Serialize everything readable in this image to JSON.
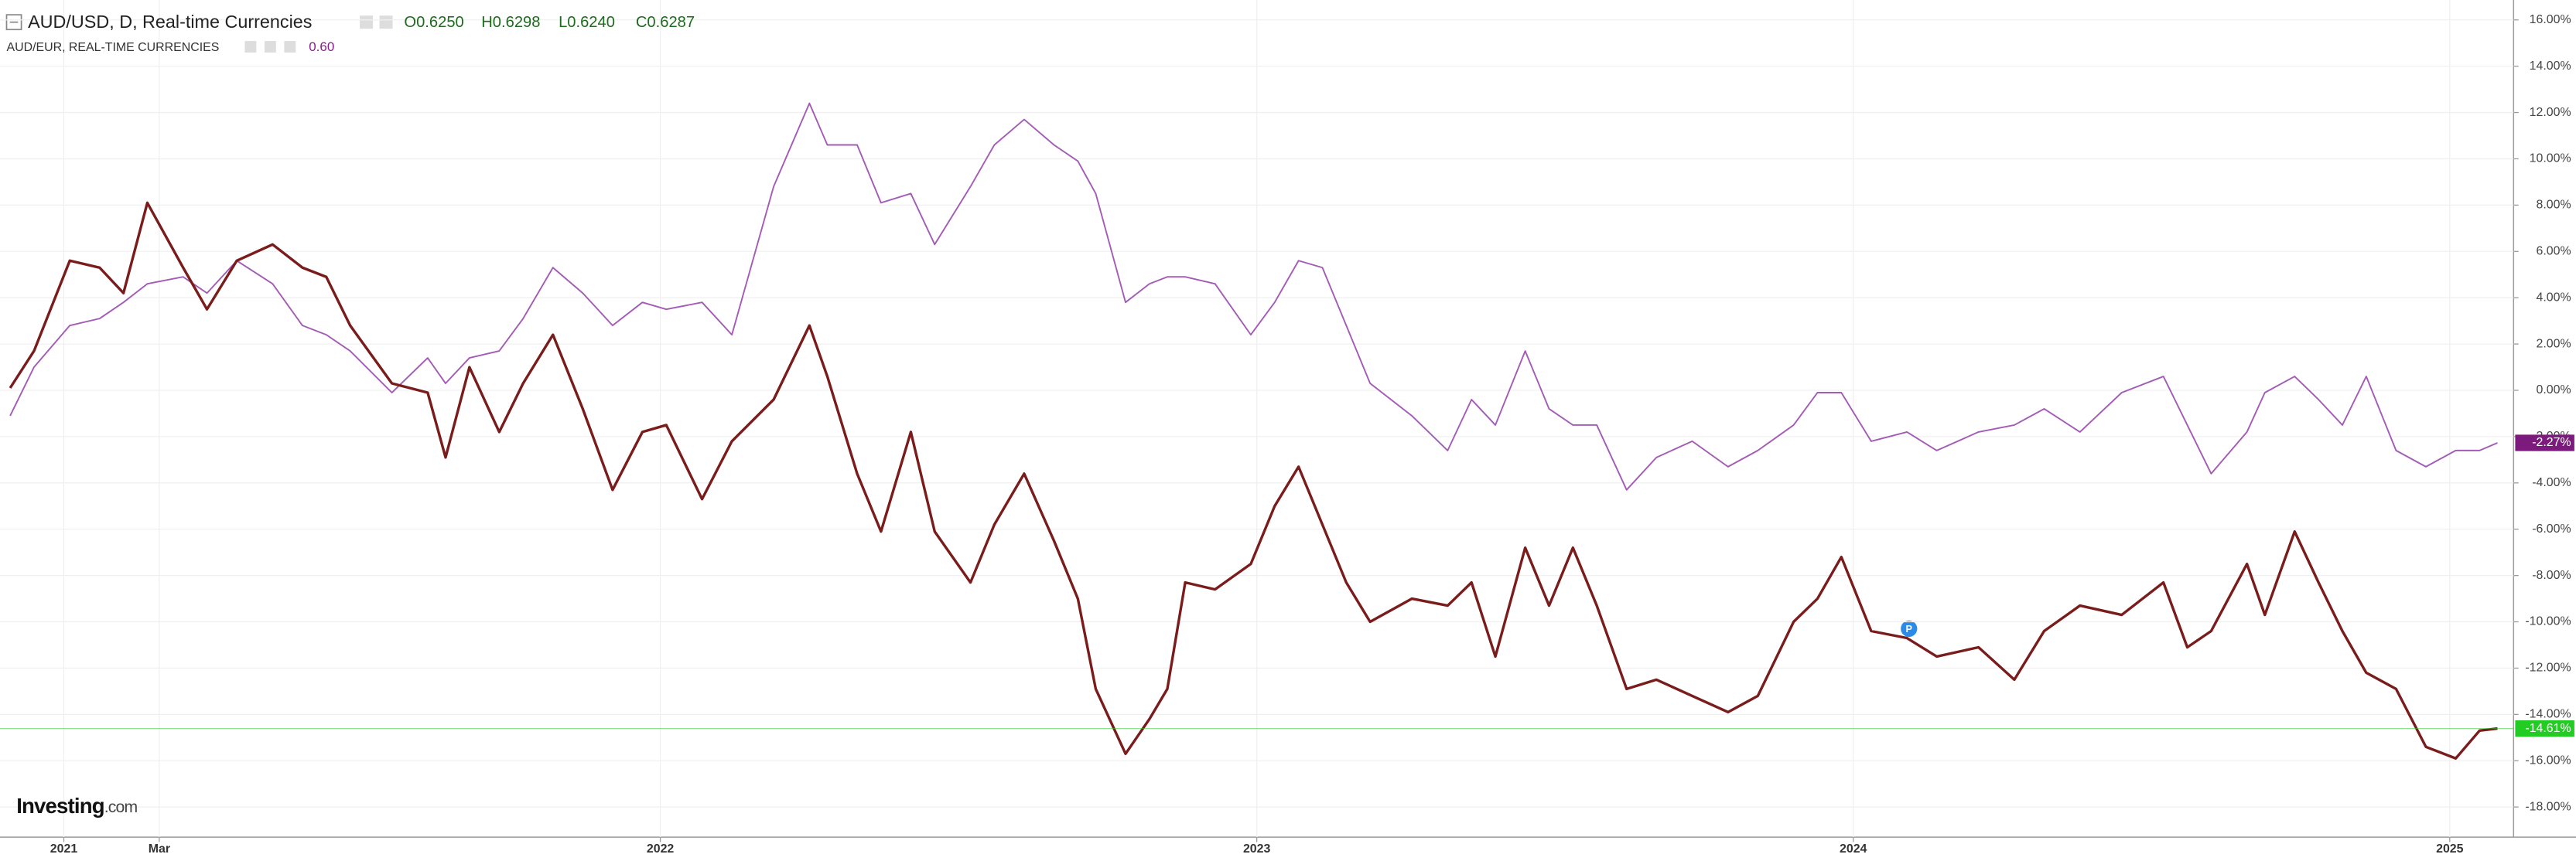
{
  "chart_data": {
    "type": "line",
    "x": [
      2020.91,
      2020.95,
      2021.01,
      2021.06,
      2021.1,
      2021.14,
      2021.2,
      2021.24,
      2021.29,
      2021.35,
      2021.4,
      2021.44,
      2021.48,
      2021.55,
      2021.61,
      2021.64,
      2021.68,
      2021.73,
      2021.77,
      2021.82,
      2021.87,
      2021.92,
      2021.97,
      2022.01,
      2022.07,
      2022.12,
      2022.19,
      2022.25,
      2022.28,
      2022.33,
      2022.37,
      2022.42,
      2022.46,
      2022.52,
      2022.56,
      2022.61,
      2022.66,
      2022.7,
      2022.73,
      2022.78,
      2022.82,
      2022.85,
      2022.88,
      2022.93,
      2022.99,
      2023.03,
      2023.07,
      2023.11,
      2023.15,
      2023.19,
      2023.26,
      2023.32,
      2023.36,
      2023.4,
      2023.45,
      2023.49,
      2023.53,
      2023.57,
      2023.62,
      2023.67,
      2023.73,
      2023.79,
      2023.84,
      2023.9,
      2023.94,
      2023.98,
      2024.03,
      2024.09,
      2024.14,
      2024.21,
      2024.27,
      2024.32,
      2024.38,
      2024.45,
      2024.52,
      2024.56,
      2024.6,
      2024.66,
      2024.69,
      2024.74,
      2024.78,
      2024.82,
      2024.86,
      2024.91,
      2024.96,
      2025.01,
      2025.05,
      2025.08
    ],
    "series": [
      {
        "name": "AUD/USD, D, Real-time Currencies",
        "info": [
          "O0.6250",
          "H0.6298",
          "L0.6240",
          "C0.6287"
        ],
        "color": "#7a1c1c",
        "info_color": "#1e6b1e",
        "badge_color": "#22cc22",
        "last_label": "-14.61%",
        "values": [
          0.1,
          1.7,
          5.6,
          5.3,
          4.2,
          8.1,
          5.3,
          3.5,
          5.6,
          6.3,
          5.3,
          4.9,
          2.8,
          0.3,
          -0.1,
          -2.9,
          1.0,
          -1.8,
          0.3,
          2.4,
          -0.8,
          -4.3,
          -1.8,
          -1.5,
          -4.7,
          -2.2,
          -0.4,
          2.8,
          0.6,
          -3.6,
          -6.1,
          -1.8,
          -6.1,
          -8.3,
          -5.8,
          -3.6,
          -6.5,
          -9.0,
          -12.9,
          -15.7,
          -14.2,
          -12.9,
          -8.3,
          -8.6,
          -7.5,
          -5.0,
          -3.3,
          -5.8,
          -8.3,
          -10.0,
          -9.0,
          -9.3,
          -8.3,
          -11.5,
          -6.8,
          -9.3,
          -6.8,
          -9.3,
          -12.9,
          -12.5,
          -13.2,
          -13.9,
          -13.2,
          -10.0,
          -9.0,
          -7.2,
          -10.4,
          -10.7,
          -11.5,
          -11.1,
          -12.5,
          -10.4,
          -9.3,
          -9.7,
          -8.3,
          -11.1,
          -10.4,
          -7.5,
          -9.7,
          -6.1,
          -8.3,
          -10.4,
          -12.2,
          -12.9,
          -15.4,
          -15.9,
          -14.7,
          -14.61
        ]
      },
      {
        "name": "AUD/EUR, REAL-TIME CURRENCIES",
        "info": [
          "0.60"
        ],
        "color": "#a35cb5",
        "info_color": "#8a1c8a",
        "badge_color": "#7d1a7d",
        "last_label": "-2.27%",
        "values": [
          -1.1,
          1.0,
          2.8,
          3.1,
          3.8,
          4.6,
          4.9,
          4.2,
          5.6,
          4.6,
          2.8,
          2.4,
          1.7,
          -0.1,
          1.4,
          0.3,
          1.4,
          1.7,
          3.1,
          5.3,
          4.2,
          2.8,
          3.8,
          3.5,
          3.8,
          2.4,
          8.8,
          12.4,
          10.6,
          10.6,
          8.1,
          8.5,
          6.3,
          8.8,
          10.6,
          11.7,
          10.6,
          9.9,
          8.5,
          3.8,
          4.6,
          4.9,
          4.9,
          4.6,
          2.4,
          3.8,
          5.6,
          5.3,
          2.8,
          0.3,
          -1.1,
          -2.6,
          -0.4,
          -1.5,
          1.7,
          -0.8,
          -1.5,
          -1.5,
          -4.3,
          -2.9,
          -2.2,
          -3.3,
          -2.6,
          -1.5,
          -0.1,
          -0.1,
          -2.2,
          -1.8,
          -2.6,
          -1.8,
          -1.5,
          -0.8,
          -1.8,
          -0.1,
          0.6,
          -1.5,
          -3.6,
          -1.8,
          -0.1,
          0.6,
          -0.4,
          -1.5,
          0.6,
          -2.6,
          -3.3,
          -2.6,
          -2.6,
          -2.27
        ]
      }
    ],
    "xlim": [
      2020.893,
      2025.107
    ],
    "xticks": [
      2021,
      {
        "value": 2021.16,
        "label": "Mar"
      },
      2022,
      2023,
      2024,
      2025
    ],
    "ylim": [
      -19.3,
      16.86
    ],
    "yticks": [
      {
        "value": 16,
        "label": "16.00%"
      },
      {
        "value": 14,
        "label": "14.00%"
      },
      {
        "value": 12,
        "label": "12.00%"
      },
      {
        "value": 10,
        "label": "10.00%"
      },
      {
        "value": 8,
        "label": "8.00%"
      },
      {
        "value": 6,
        "label": "6.00%"
      },
      {
        "value": 4,
        "label": "4.00%"
      },
      {
        "value": 2,
        "label": "2.00%"
      },
      {
        "value": 0,
        "label": "0.00%"
      },
      {
        "value": -2,
        "label": "-2.00%"
      },
      {
        "value": -4,
        "label": "-4.00%"
      },
      {
        "value": -6,
        "label": "-6.00%"
      },
      {
        "value": -8,
        "label": "-8.00%"
      },
      {
        "value": -10,
        "label": "-10.00%"
      },
      {
        "value": -12,
        "label": "-12.00%"
      },
      {
        "value": -14,
        "label": "-14.00%"
      },
      {
        "value": -16,
        "label": "-16.00%"
      },
      {
        "value": -18,
        "label": "-18.00%"
      }
    ],
    "grid": true,
    "logo": [
      "Investing",
      ".com"
    ]
  }
}
